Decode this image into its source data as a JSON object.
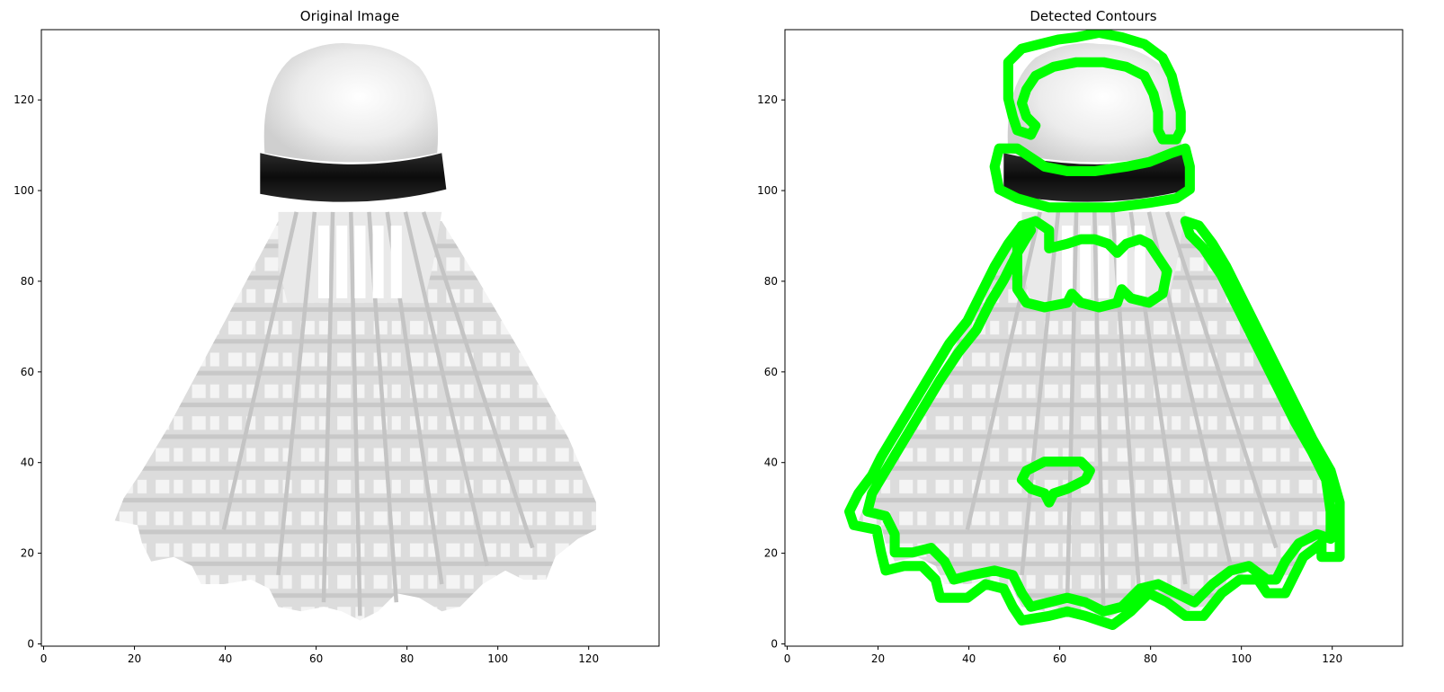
{
  "figure": {
    "panels": [
      {
        "title": "Original Image",
        "xticks": [
          0,
          20,
          40,
          60,
          80,
          100,
          120
        ],
        "yticks": [
          0,
          20,
          40,
          60,
          80,
          100,
          120
        ],
        "xlim": [
          -0.5,
          135.5
        ],
        "ylim": [
          135.5,
          -0.5
        ],
        "contours_visible": false
      },
      {
        "title": "Detected Contours",
        "xticks": [
          0,
          20,
          40,
          60,
          80,
          100,
          120
        ],
        "yticks": [
          0,
          20,
          40,
          60,
          80,
          100,
          120
        ],
        "xlim": [
          -0.5,
          135.5
        ],
        "ylim": [
          135.5,
          -0.5
        ],
        "contours_visible": true
      }
    ],
    "contour_color": "#00ff00",
    "band_color": "#141414",
    "cap_color": "#f0f0f0",
    "skirt_color": "#d9d9d9",
    "contours": [
      [
        [
          49,
          7
        ],
        [
          52,
          4
        ],
        [
          56,
          3
        ],
        [
          60,
          2
        ],
        [
          64,
          1.5
        ],
        [
          69,
          0.5
        ],
        [
          74,
          1.5
        ],
        [
          79,
          3
        ],
        [
          83,
          6
        ],
        [
          85,
          10
        ],
        [
          86,
          14
        ],
        [
          87,
          18
        ],
        [
          87,
          22
        ],
        [
          86,
          24
        ],
        [
          83,
          24
        ],
        [
          82,
          22
        ],
        [
          82,
          18
        ],
        [
          81,
          14
        ],
        [
          79,
          10
        ],
        [
          75,
          8
        ],
        [
          70,
          7
        ],
        [
          64,
          7
        ],
        [
          59,
          8
        ],
        [
          55,
          10
        ],
        [
          53,
          13
        ],
        [
          52,
          16
        ],
        [
          53,
          19
        ],
        [
          55,
          21
        ],
        [
          54,
          23
        ],
        [
          51,
          22
        ],
        [
          50,
          19
        ],
        [
          49,
          15
        ],
        [
          49,
          11
        ]
      ],
      [
        [
          47,
          26
        ],
        [
          51,
          26
        ],
        [
          54,
          28
        ],
        [
          57,
          30
        ],
        [
          62,
          31
        ],
        [
          68,
          31
        ],
        [
          75,
          30
        ],
        [
          80,
          29
        ],
        [
          85,
          27
        ],
        [
          88,
          26
        ],
        [
          89,
          30
        ],
        [
          89,
          35
        ],
        [
          86,
          37
        ],
        [
          80,
          38
        ],
        [
          72,
          39
        ],
        [
          65,
          39
        ],
        [
          58,
          39
        ],
        [
          51,
          37
        ],
        [
          47,
          35
        ],
        [
          46,
          30
        ]
      ],
      [
        [
          52,
          43
        ],
        [
          55,
          42
        ],
        [
          58,
          44
        ],
        [
          58,
          48
        ],
        [
          62,
          47
        ],
        [
          65,
          46
        ],
        [
          68,
          46
        ],
        [
          71,
          47
        ],
        [
          73,
          49
        ],
        [
          75,
          47
        ],
        [
          78,
          46
        ],
        [
          80,
          47
        ],
        [
          82,
          50
        ],
        [
          84,
          53
        ],
        [
          83,
          58
        ],
        [
          80,
          60
        ],
        [
          76,
          59
        ],
        [
          74,
          57
        ],
        [
          73,
          60
        ],
        [
          69,
          61
        ],
        [
          65,
          60
        ],
        [
          63,
          58
        ],
        [
          62,
          60
        ],
        [
          57,
          61
        ],
        [
          53,
          60
        ],
        [
          51,
          57
        ],
        [
          51,
          52
        ],
        [
          51,
          47
        ]
      ],
      [
        [
          88,
          42
        ],
        [
          91,
          43
        ],
        [
          94,
          47
        ],
        [
          97,
          52
        ],
        [
          100,
          58
        ],
        [
          104,
          66
        ],
        [
          108,
          74
        ],
        [
          112,
          82
        ],
        [
          116,
          90
        ],
        [
          120,
          97
        ],
        [
          122,
          104
        ],
        [
          122,
          110
        ],
        [
          122,
          116
        ],
        [
          118,
          116
        ],
        [
          118,
          113
        ],
        [
          114,
          116
        ],
        [
          112,
          120
        ],
        [
          110,
          124
        ],
        [
          106,
          124
        ],
        [
          104,
          121
        ],
        [
          100,
          121
        ],
        [
          96,
          124
        ],
        [
          92,
          129
        ],
        [
          88,
          129
        ],
        [
          84,
          126
        ],
        [
          80,
          124
        ],
        [
          76,
          128
        ],
        [
          72,
          131
        ],
        [
          66,
          129
        ],
        [
          62,
          128
        ],
        [
          58,
          129
        ],
        [
          52,
          130
        ],
        [
          50,
          127
        ],
        [
          48,
          123
        ],
        [
          44,
          122
        ],
        [
          40,
          125
        ],
        [
          34,
          125
        ],
        [
          33,
          121
        ],
        [
          30,
          118
        ],
        [
          26,
          118
        ],
        [
          22,
          119
        ],
        [
          21,
          115
        ],
        [
          20,
          110
        ],
        [
          15,
          109
        ],
        [
          14,
          106
        ],
        [
          16,
          102
        ],
        [
          19,
          98
        ],
        [
          21,
          94
        ],
        [
          24,
          89
        ],
        [
          27,
          84
        ],
        [
          30,
          79
        ],
        [
          33,
          74
        ],
        [
          36,
          69
        ],
        [
          40,
          64
        ],
        [
          43,
          58
        ],
        [
          46,
          52
        ],
        [
          49,
          47
        ],
        [
          52,
          43
        ],
        [
          54,
          44
        ],
        [
          51,
          49
        ],
        [
          48,
          55
        ],
        [
          45,
          60
        ],
        [
          42,
          66
        ],
        [
          38,
          71
        ],
        [
          34,
          77
        ],
        [
          31,
          82
        ],
        [
          28,
          87
        ],
        [
          25,
          92
        ],
        [
          22,
          97
        ],
        [
          19,
          102
        ],
        [
          18,
          106
        ],
        [
          22,
          107
        ],
        [
          24,
          111
        ],
        [
          24,
          115
        ],
        [
          28,
          115
        ],
        [
          32,
          114
        ],
        [
          35,
          117
        ],
        [
          37,
          121
        ],
        [
          41,
          120
        ],
        [
          46,
          119
        ],
        [
          50,
          120
        ],
        [
          52,
          124
        ],
        [
          54,
          127
        ],
        [
          58,
          126
        ],
        [
          62,
          125
        ],
        [
          66,
          126
        ],
        [
          70,
          128
        ],
        [
          74,
          127
        ],
        [
          78,
          123
        ],
        [
          82,
          122
        ],
        [
          86,
          124
        ],
        [
          90,
          126
        ],
        [
          94,
          122
        ],
        [
          98,
          119
        ],
        [
          102,
          118
        ],
        [
          106,
          121
        ],
        [
          108,
          121
        ],
        [
          110,
          117
        ],
        [
          113,
          113
        ],
        [
          117,
          111
        ],
        [
          120,
          112
        ],
        [
          120,
          106
        ],
        [
          119,
          99
        ],
        [
          116,
          93
        ],
        [
          112,
          86
        ],
        [
          108,
          78
        ],
        [
          104,
          70
        ],
        [
          100,
          62
        ],
        [
          96,
          54
        ],
        [
          92,
          48
        ],
        [
          89,
          45
        ]
      ],
      [
        [
          53,
          97
        ],
        [
          57,
          95
        ],
        [
          61,
          95
        ],
        [
          65,
          95
        ],
        [
          67,
          97
        ],
        [
          66,
          99
        ],
        [
          62,
          101
        ],
        [
          59,
          102
        ],
        [
          58,
          104
        ],
        [
          57,
          102
        ],
        [
          54,
          101
        ],
        [
          52,
          99
        ]
      ]
    ]
  }
}
